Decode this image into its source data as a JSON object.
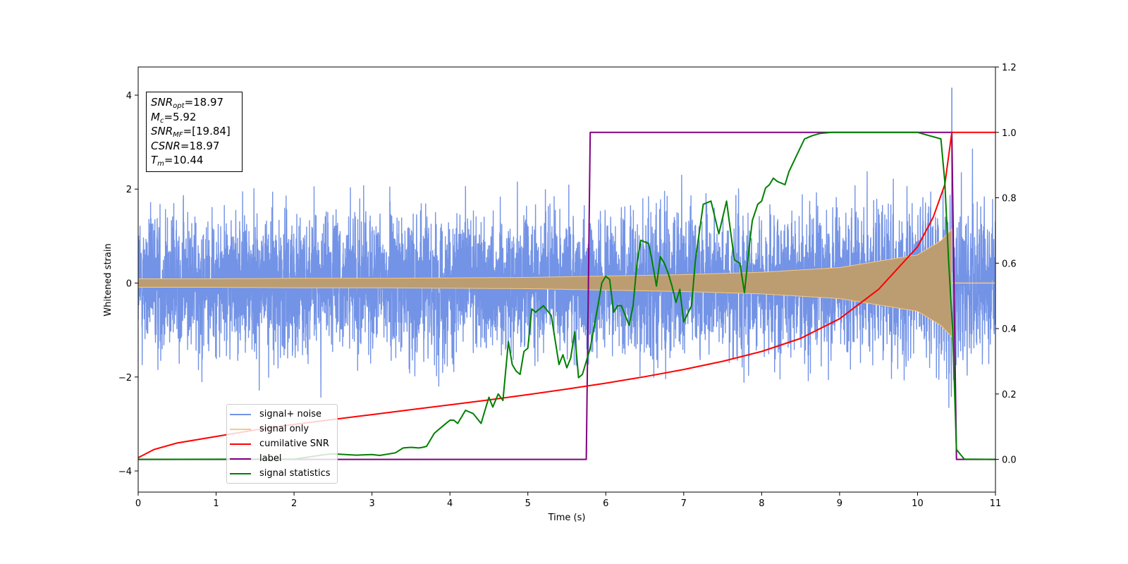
{
  "chart_data": {
    "type": "line",
    "xlabel": "Time (s)",
    "ylabel": "Whitened strain",
    "xlim": [
      0,
      11
    ],
    "ylim": [
      -4.45,
      4.6
    ],
    "y2lim": [
      -0.1,
      1.2
    ],
    "x_ticks": [
      "0",
      "1",
      "2",
      "3",
      "4",
      "5",
      "6",
      "7",
      "8",
      "9",
      "10",
      "11"
    ],
    "y_ticks": [
      "4",
      "2",
      "0",
      "−2",
      "−4"
    ],
    "y2_ticks": [
      "1.2",
      "1.0",
      "0.8",
      "0.6",
      "0.4",
      "0.2",
      "0.0"
    ],
    "annotation": {
      "snr_opt": {
        "sym": "SNR",
        "sub": "opt",
        "value": "=18.97"
      },
      "mc": {
        "sym": "M",
        "sub": "c",
        "value": "=5.92"
      },
      "snr_mf": {
        "sym": "SNR",
        "sub": "MF",
        "value": "=[19.84]"
      },
      "csnr": {
        "sym": "CSNR",
        "value": "=18.97"
      },
      "tm": {
        "sym": "T",
        "sub": "m",
        "value": "=10.44"
      }
    },
    "series": [
      {
        "name": "signal+ noise",
        "color": "#7393e6",
        "axis": "left",
        "x": [
          0,
          10.44,
          11
        ],
        "noise_std": 0.72,
        "merger_time": 10.44,
        "peak_value": 4.15
      },
      {
        "name": "signal only",
        "color": "#f7c97e",
        "axis": "left",
        "x": [
          0,
          1,
          2,
          3,
          4,
          5,
          6,
          7,
          8,
          9,
          10,
          10.3,
          10.44,
          11
        ],
        "amplitude": [
          0.09,
          0.09,
          0.1,
          0.1,
          0.11,
          0.12,
          0.15,
          0.18,
          0.23,
          0.33,
          0.6,
          0.9,
          1.15,
          0
        ]
      },
      {
        "name": "cumilative SNR",
        "color": "#ff0000",
        "axis": "right",
        "x": [
          0,
          0.2,
          0.5,
          1,
          1.5,
          2,
          2.5,
          3,
          3.5,
          4,
          4.5,
          5,
          5.5,
          6,
          6.5,
          7,
          7.5,
          8,
          8.5,
          9,
          9.5,
          10,
          10.2,
          10.35,
          10.44,
          11
        ],
        "values": [
          0.005,
          0.03,
          0.05,
          0.07,
          0.09,
          0.107,
          0.122,
          0.137,
          0.152,
          0.167,
          0.182,
          0.198,
          0.215,
          0.233,
          0.253,
          0.275,
          0.3,
          0.33,
          0.37,
          0.43,
          0.52,
          0.65,
          0.74,
          0.84,
          1.0,
          1.0
        ]
      },
      {
        "name": "label",
        "color": "#800080",
        "axis": "right",
        "x": [
          0,
          5.75,
          5.8,
          10.44,
          10.5,
          11
        ],
        "values": [
          0,
          0,
          1,
          1,
          0,
          0
        ]
      },
      {
        "name": "signal statistics",
        "color": "#008000",
        "axis": "right",
        "x": [
          0,
          2,
          2.4,
          2.5,
          2.8,
          3.0,
          3.1,
          3.3,
          3.4,
          3.5,
          3.6,
          3.65,
          3.7,
          3.8,
          3.9,
          4.0,
          4.05,
          4.1,
          4.2,
          4.3,
          4.4,
          4.45,
          4.5,
          4.55,
          4.62,
          4.68,
          4.75,
          4.8,
          4.85,
          4.9,
          4.95,
          5.0,
          5.05,
          5.1,
          5.2,
          5.3,
          5.4,
          5.45,
          5.5,
          5.55,
          5.6,
          5.65,
          5.7,
          5.75,
          5.8,
          5.9,
          5.95,
          6.0,
          6.05,
          6.1,
          6.15,
          6.2,
          6.3,
          6.35,
          6.4,
          6.45,
          6.55,
          6.6,
          6.65,
          6.7,
          6.75,
          6.8,
          6.85,
          6.9,
          6.95,
          7.0,
          7.1,
          7.15,
          7.25,
          7.35,
          7.45,
          7.55,
          7.6,
          7.65,
          7.72,
          7.78,
          7.84,
          7.88,
          7.95,
          8.0,
          8.05,
          8.1,
          8.15,
          8.2,
          8.3,
          8.35,
          8.45,
          8.55,
          8.65,
          8.75,
          8.9,
          9.1,
          9.5,
          10.0,
          10.3,
          10.35,
          10.4,
          10.45,
          10.5,
          10.6,
          11
        ],
        "values": [
          0.0,
          0.001,
          0.015,
          0.017,
          0.013,
          0.015,
          0.012,
          0.02,
          0.035,
          0.037,
          0.035,
          0.037,
          0.04,
          0.08,
          0.1,
          0.12,
          0.12,
          0.11,
          0.15,
          0.14,
          0.11,
          0.15,
          0.19,
          0.16,
          0.2,
          0.18,
          0.36,
          0.29,
          0.27,
          0.26,
          0.33,
          0.34,
          0.46,
          0.45,
          0.47,
          0.44,
          0.29,
          0.32,
          0.28,
          0.31,
          0.39,
          0.25,
          0.26,
          0.3,
          0.34,
          0.47,
          0.54,
          0.56,
          0.55,
          0.45,
          0.47,
          0.47,
          0.41,
          0.47,
          0.6,
          0.67,
          0.66,
          0.6,
          0.53,
          0.62,
          0.6,
          0.57,
          0.53,
          0.48,
          0.52,
          0.42,
          0.47,
          0.61,
          0.78,
          0.79,
          0.69,
          0.79,
          0.7,
          0.61,
          0.6,
          0.51,
          0.65,
          0.73,
          0.78,
          0.79,
          0.83,
          0.84,
          0.86,
          0.85,
          0.84,
          0.88,
          0.93,
          0.98,
          0.99,
          0.997,
          1.0,
          1.0,
          1.0,
          1.0,
          0.98,
          0.85,
          0.6,
          0.4,
          0.03,
          0.001,
          0.0
        ]
      }
    ]
  }
}
